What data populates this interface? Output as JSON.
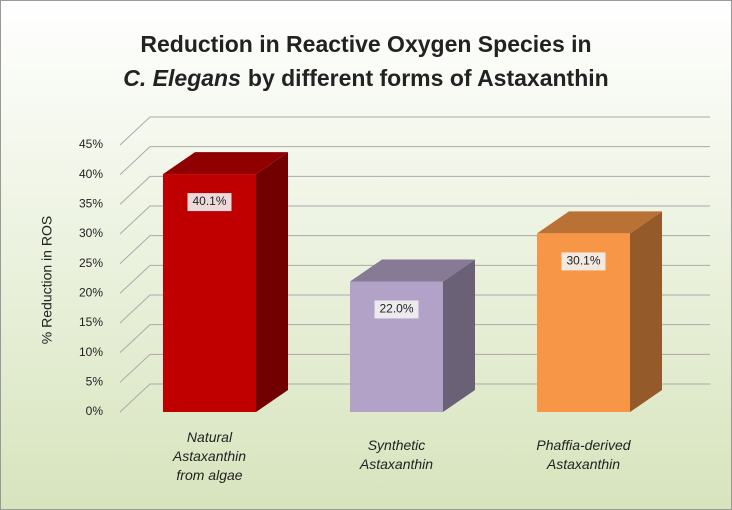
{
  "chart_data": {
    "type": "bar3d",
    "title": [
      "Reduction in Reactive Oxygen Species in",
      "C. Elegans",
      "by different forms of Astaxanthin"
    ],
    "categories": [
      [
        "Natural",
        "Astaxanthin",
        "from algae"
      ],
      [
        "Synthetic",
        "Astaxanthin"
      ],
      [
        "Phaffia-derived",
        "Astaxanthin"
      ]
    ],
    "values": [
      40.1,
      22.0,
      30.1
    ],
    "value_labels": [
      "40.1%",
      "22.0%",
      "30.1%"
    ],
    "colors": [
      "#c00000",
      "#b3a2c7",
      "#f79646"
    ],
    "y_label": "% Reduction in ROS",
    "ylim": [
      0,
      45
    ],
    "yticks": [
      {
        "value": 0,
        "label": "0%"
      },
      {
        "value": 5,
        "label": "5%"
      },
      {
        "value": 10,
        "label": "10%"
      },
      {
        "value": 15,
        "label": "15%"
      },
      {
        "value": 20,
        "label": "20%"
      },
      {
        "value": 25,
        "label": "25%"
      },
      {
        "value": 30,
        "label": "30%"
      },
      {
        "value": 35,
        "label": "35%"
      },
      {
        "value": 40,
        "label": "40%"
      },
      {
        "value": 45,
        "label": "45%"
      }
    ],
    "grid": true
  }
}
